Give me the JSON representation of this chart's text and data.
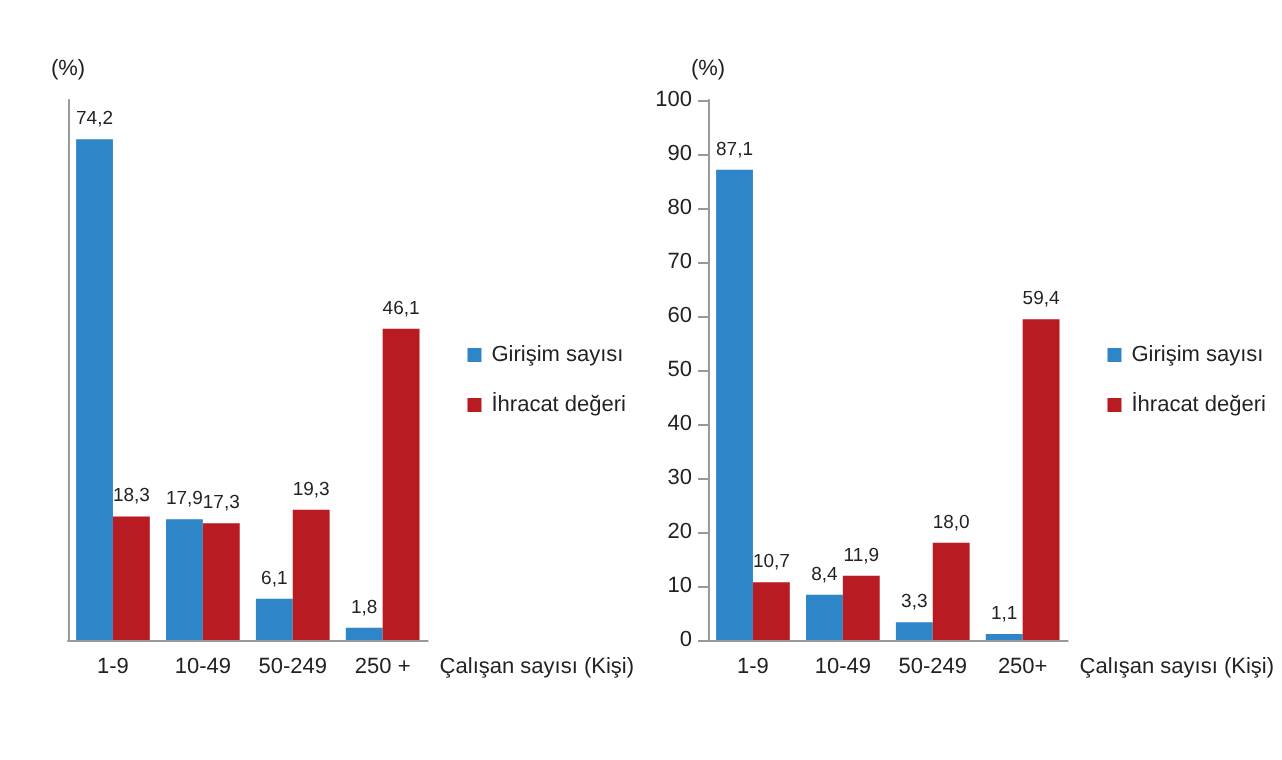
{
  "chart_data": [
    {
      "type": "bar",
      "ylabel": "(%)",
      "xlabel": "Çalışan sayısı (Kişi)",
      "categories": [
        "1-9",
        "10-49",
        "50-249",
        "250 +"
      ],
      "tick_labels": "x",
      "legend": "right",
      "grid": false,
      "series": [
        {
          "name": "Girişim sayısı",
          "color": "#2e86c9",
          "values": [
            74.2,
            17.9,
            6.1,
            1.8
          ],
          "value_labels": [
            "74,2",
            "17,9",
            "6,1",
            "1,8"
          ]
        },
        {
          "name": "İhracat değeri",
          "color": "#b81c22",
          "values": [
            18.3,
            17.3,
            19.3,
            46.1
          ],
          "value_labels": [
            "18,3",
            "17,3",
            "19,3",
            "46,1"
          ]
        }
      ]
    },
    {
      "type": "bar",
      "ylabel": "(%)",
      "xlabel": "Çalışan sayısı (Kişi)",
      "categories": [
        "1-9",
        "10-49",
        "50-249",
        "250+"
      ],
      "ylim": [
        0,
        100
      ],
      "yticks": [
        0,
        10,
        20,
        30,
        40,
        50,
        60,
        70,
        80,
        90,
        100
      ],
      "legend": "right",
      "grid": false,
      "series": [
        {
          "name": "Girişim sayısı",
          "color": "#2e86c9",
          "values": [
            87.1,
            8.4,
            3.3,
            1.1
          ],
          "value_labels": [
            "87,1",
            "8,4",
            "3,3",
            "1,1"
          ]
        },
        {
          "name": "İhracat değeri",
          "color": "#b81c22",
          "values": [
            10.7,
            11.9,
            18.0,
            59.4
          ],
          "value_labels": [
            "10,7",
            "11,9",
            "18,0",
            "59,4"
          ]
        }
      ]
    }
  ]
}
